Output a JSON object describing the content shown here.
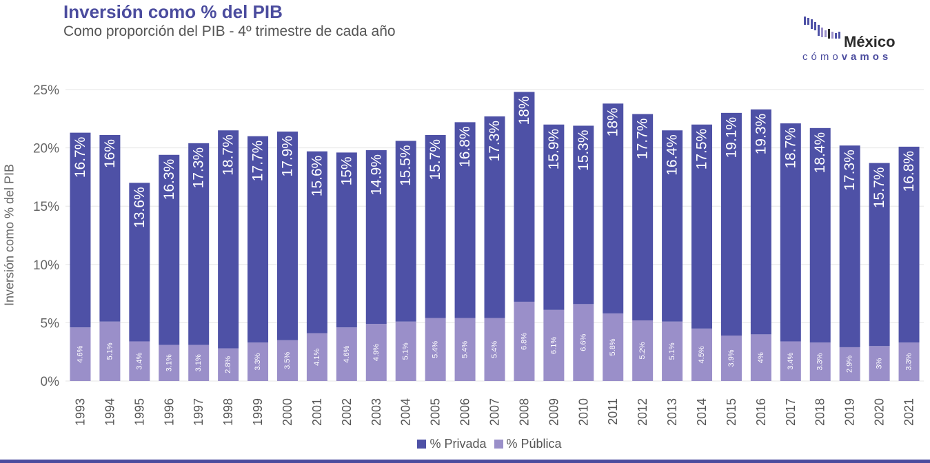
{
  "title": "Inversión como % del PIB",
  "subtitle": "Como proporción del PIB - 4º trimestre de cada año",
  "logo": {
    "top": "México",
    "bottom_light": "cómo",
    "bottom_bold": "vamos"
  },
  "colors": {
    "privada": "#4e51a6",
    "publica": "#9a8fc9",
    "title": "#4b4c9e",
    "grid": "#e6e6e6"
  },
  "chart_data": {
    "type": "bar",
    "stacked": true,
    "title": "Inversión como % del PIB",
    "subtitle": "Como proporción del PIB - 4º trimestre de cada año",
    "xlabel": "",
    "ylabel": "Inversión como % del PIB",
    "ylim": [
      0,
      25
    ],
    "yticks": [
      "0%",
      "5%",
      "10%",
      "15%",
      "20%",
      "25%"
    ],
    "grid": true,
    "legend_position": "bottom",
    "categories": [
      "1993",
      "1994",
      "1995",
      "1996",
      "1997",
      "1998",
      "1999",
      "2000",
      "2001",
      "2002",
      "2003",
      "2004",
      "2005",
      "2006",
      "2007",
      "2008",
      "2009",
      "2010",
      "2011",
      "2012",
      "2013",
      "2014",
      "2015",
      "2016",
      "2017",
      "2018",
      "2019",
      "2020",
      "2021"
    ],
    "series": [
      {
        "name": "% Pública",
        "color": "#9a8fc9",
        "values": [
          4.6,
          5.1,
          3.4,
          3.1,
          3.1,
          2.8,
          3.3,
          3.5,
          4.1,
          4.6,
          4.9,
          5.1,
          5.4,
          5.4,
          5.4,
          6.8,
          6.1,
          6.6,
          5.8,
          5.2,
          5.1,
          4.5,
          3.9,
          4,
          3.4,
          3.3,
          2.9,
          3,
          3.3
        ],
        "labels": [
          "4.6%",
          "5.1%",
          "3.4%",
          "3.1%",
          "3.1%",
          "2.8%",
          "3.3%",
          "3.5%",
          "4.1%",
          "4.6%",
          "4.9%",
          "5.1%",
          "5.4%",
          "5.4%",
          "5.4%",
          "6.8%",
          "6.1%",
          "6.6%",
          "5.8%",
          "5.2%",
          "5.1%",
          "4.5%",
          "3.9%",
          "4%",
          "3.4%",
          "3.3%",
          "2.9%",
          "3%",
          "3.3%"
        ]
      },
      {
        "name": "% Privada",
        "color": "#4e51a6",
        "values": [
          16.7,
          16,
          13.6,
          16.3,
          17.3,
          18.7,
          17.7,
          17.9,
          15.6,
          15,
          14.9,
          15.5,
          15.7,
          16.8,
          17.3,
          18,
          15.9,
          15.3,
          18,
          17.7,
          16.4,
          17.5,
          19.1,
          19.3,
          18.7,
          18.4,
          17.3,
          15.7,
          16.8
        ],
        "labels": [
          "16.7%",
          "16%",
          "13.6%",
          "16.3%",
          "17.3%",
          "18.7%",
          "17.7%",
          "17.9%",
          "15.6%",
          "15%",
          "14.9%",
          "15.5%",
          "15.7%",
          "16.8%",
          "17.3%",
          "18%",
          "15.9%",
          "15.3%",
          "18%",
          "17.7%",
          "16.4%",
          "17.5%",
          "19.1%",
          "19.3%",
          "18.7%",
          "18.4%",
          "17.3%",
          "15.7%",
          "16.8%"
        ]
      }
    ]
  },
  "legend": [
    {
      "label": "% Privada",
      "color": "#4e51a6"
    },
    {
      "label": "% Pública",
      "color": "#9a8fc9"
    }
  ]
}
